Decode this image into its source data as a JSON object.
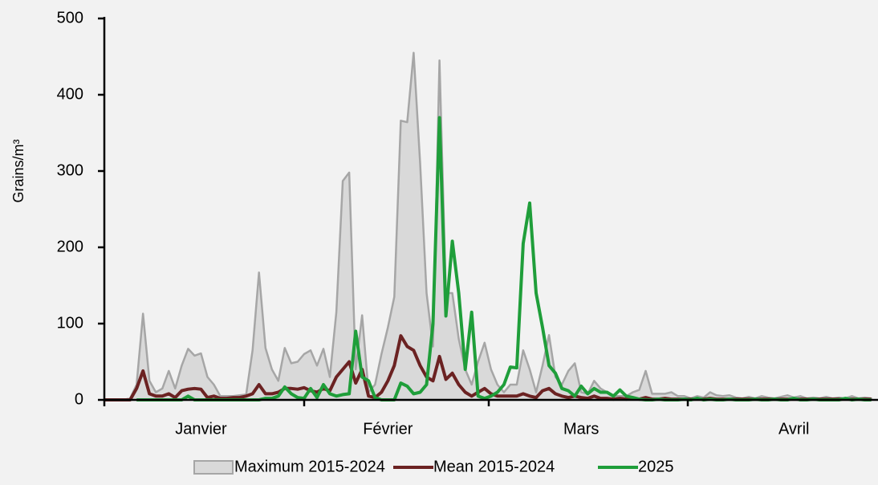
{
  "chart_data": {
    "type": "line",
    "y_label": "Grains/m³",
    "categories": [
      null,
      null,
      null,
      null,
      null,
      null,
      null,
      null,
      null,
      null,
      null,
      null,
      null,
      null,
      null,
      "Janvier",
      null,
      null,
      null,
      null,
      null,
      null,
      null,
      null,
      null,
      null,
      null,
      null,
      null,
      null,
      null,
      null,
      null,
      null,
      null,
      null,
      null,
      null,
      null,
      null,
      null,
      null,
      null,
      null,
      "Février",
      null,
      null,
      null,
      null,
      null,
      null,
      null,
      null,
      null,
      null,
      null,
      null,
      null,
      null,
      null,
      null,
      null,
      null,
      null,
      null,
      null,
      null,
      null,
      null,
      null,
      null,
      null,
      null,
      null,
      "Mars",
      null,
      null,
      null,
      null,
      null,
      null,
      null,
      null,
      null,
      null,
      null,
      null,
      null,
      null,
      null,
      null,
      null,
      null,
      null,
      null,
      null,
      null,
      null,
      null,
      null,
      null,
      null,
      null,
      null,
      null,
      null,
      null,
      "Avril",
      null,
      null,
      null,
      null,
      null,
      null,
      null,
      null,
      null,
      null,
      null,
      null
    ],
    "series": [
      {
        "name": "Maximum 2015-2024",
        "style": "area",
        "color": "#d9d9d9",
        "edge_color": "#a6a6a6",
        "values": [
          0,
          0,
          0,
          0,
          2,
          20,
          113,
          25,
          10,
          15,
          38,
          15,
          45,
          67,
          58,
          61,
          30,
          20,
          5,
          5,
          5,
          6,
          7,
          65,
          167,
          68,
          40,
          25,
          68,
          48,
          50,
          60,
          65,
          45,
          67,
          30,
          115,
          287,
          298,
          40,
          111,
          10,
          20,
          60,
          95,
          135,
          366,
          364,
          455,
          310,
          140,
          70,
          445,
          140,
          140,
          80,
          40,
          20,
          50,
          75,
          40,
          20,
          10,
          20,
          20,
          65,
          40,
          10,
          45,
          85,
          30,
          20,
          38,
          48,
          10,
          8,
          25,
          15,
          10,
          5,
          5,
          5,
          10,
          13,
          38,
          8,
          8,
          8,
          10,
          5,
          5,
          2,
          5,
          3,
          10,
          6,
          5,
          6,
          3,
          2,
          4,
          2,
          5,
          3,
          2,
          4,
          6,
          3,
          5,
          2,
          3,
          2,
          4,
          2,
          3,
          2,
          5,
          2,
          3,
          2
        ]
      },
      {
        "name": "Mean 2015-2024",
        "style": "line",
        "color": "#6b2222",
        "values": [
          0,
          0,
          0,
          0,
          0,
          15,
          38,
          8,
          5,
          5,
          8,
          3,
          12,
          14,
          15,
          14,
          3,
          5,
          2,
          2,
          3,
          3,
          5,
          8,
          20,
          8,
          8,
          10,
          15,
          15,
          14,
          16,
          12,
          10,
          15,
          12,
          30,
          40,
          50,
          22,
          40,
          5,
          3,
          10,
          25,
          45,
          84,
          70,
          65,
          45,
          30,
          25,
          57,
          27,
          35,
          20,
          10,
          5,
          10,
          15,
          8,
          5,
          5,
          5,
          5,
          8,
          5,
          3,
          12,
          15,
          8,
          5,
          3,
          5,
          3,
          2,
          5,
          2,
          2,
          1,
          2,
          1,
          2,
          1,
          3,
          1,
          1,
          2,
          1,
          1,
          1,
          1,
          1,
          1,
          2,
          1,
          1,
          1,
          1,
          1,
          1,
          1,
          1,
          1,
          1,
          1,
          1,
          1,
          1,
          1,
          1,
          1,
          1,
          1,
          1,
          1,
          1,
          1,
          1,
          1
        ]
      },
      {
        "name": "2025",
        "style": "line",
        "color": "#1f9e3a",
        "values": [
          null,
          null,
          null,
          null,
          null,
          0,
          0,
          0,
          0,
          0,
          0,
          0,
          0,
          5,
          0,
          0,
          0,
          0,
          0,
          0,
          0,
          0,
          0,
          0,
          0,
          2,
          2,
          5,
          17,
          8,
          3,
          2,
          15,
          3,
          20,
          8,
          5,
          7,
          8,
          90,
          30,
          25,
          3,
          0,
          0,
          0,
          22,
          18,
          8,
          10,
          20,
          100,
          370,
          110,
          208,
          140,
          40,
          115,
          5,
          2,
          5,
          10,
          20,
          43,
          42,
          205,
          258,
          140,
          95,
          45,
          35,
          15,
          12,
          5,
          18,
          8,
          15,
          10,
          10,
          5,
          13,
          5,
          3,
          1,
          0,
          0,
          1,
          0,
          0,
          0,
          1,
          0,
          2,
          0,
          1,
          0,
          0,
          1,
          0,
          0,
          0,
          1,
          0,
          0,
          1,
          0,
          0,
          2,
          0,
          0,
          1,
          0,
          0,
          0,
          0,
          2,
          0,
          1,
          0,
          0
        ]
      }
    ],
    "ylim": [
      0,
      500
    ],
    "yticks": [
      0,
      100,
      200,
      300,
      400,
      500
    ],
    "legend": "bottom"
  }
}
